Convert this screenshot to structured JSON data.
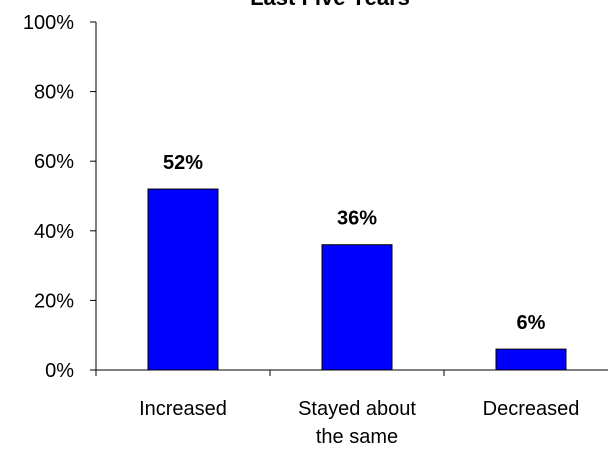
{
  "chart_data": {
    "type": "bar",
    "title": "Last Five Years",
    "xlabel": "",
    "ylabel": "",
    "categories": [
      [
        "Increased"
      ],
      [
        "Stayed about",
        "the same"
      ],
      [
        "Decreased"
      ]
    ],
    "values": [
      52,
      36,
      6
    ],
    "data_labels": [
      "52%",
      "36%",
      "6%"
    ],
    "ylim": [
      0,
      100
    ],
    "yticks": [
      0,
      20,
      40,
      60,
      80,
      100
    ],
    "ytick_labels": [
      "0%",
      "20%",
      "40%",
      "60%",
      "80%",
      "100%"
    ],
    "grid": false,
    "legend": "none",
    "colors": {
      "bar_fill": "#0000FF",
      "bar_stroke": "#000000",
      "axis": "#000000",
      "text": "#000000"
    }
  }
}
